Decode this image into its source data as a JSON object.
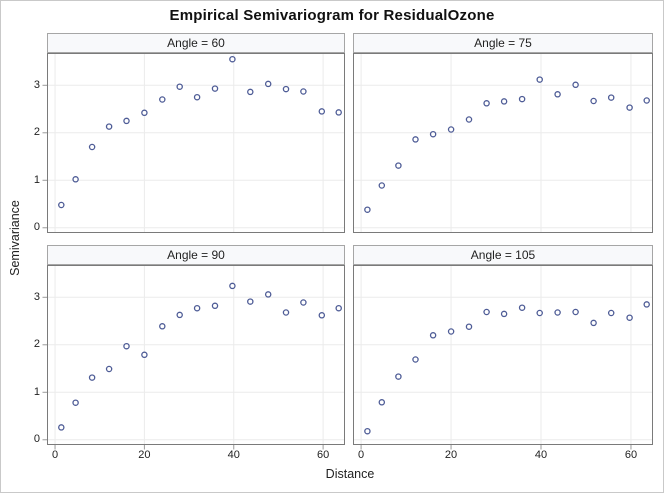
{
  "figure": {
    "title": "Empirical Semivariogram for ResidualOzone"
  },
  "chart_data": {
    "type": "scatter",
    "title": "Empirical Semivariogram for ResidualOzone",
    "xlabel": "Distance",
    "ylabel": "Semivariance",
    "marker": "open-circle",
    "marker_color": "#4e5c96",
    "grid": true,
    "grid_color": "#ebebeb",
    "xlim": [
      -1.8,
      64.9
    ],
    "ylim": [
      -0.11,
      3.68
    ],
    "x_ticks": [
      "0",
      "20",
      "40",
      "60"
    ],
    "x_tick_values": [
      0,
      20,
      40,
      60
    ],
    "y_ticks": [
      "0",
      "1",
      "2",
      "3"
    ],
    "y_tick_values": [
      0,
      1,
      2,
      3
    ],
    "x": [
      1.4,
      4.6,
      8.3,
      12.1,
      16.0,
      20.0,
      24.0,
      27.9,
      31.8,
      35.8,
      39.7,
      43.7,
      47.7,
      51.7,
      55.6,
      59.7,
      63.5
    ],
    "panels": [
      {
        "label": "Angle = 60",
        "values": [
          0.48,
          1.02,
          1.7,
          2.13,
          2.25,
          2.42,
          2.7,
          2.97,
          2.75,
          2.93,
          3.55,
          2.86,
          3.03,
          2.92,
          2.87,
          2.45,
          2.43
        ]
      },
      {
        "label": "Angle = 75",
        "values": [
          0.38,
          0.89,
          1.31,
          1.86,
          1.97,
          2.07,
          2.28,
          2.62,
          2.66,
          2.71,
          3.12,
          2.81,
          3.01,
          2.67,
          2.74,
          2.53,
          2.68
        ]
      },
      {
        "label": "Angle = 90",
        "values": [
          0.26,
          0.78,
          1.31,
          1.49,
          1.97,
          1.79,
          2.39,
          2.63,
          2.77,
          2.82,
          3.24,
          2.91,
          3.06,
          2.68,
          2.89,
          2.62,
          2.77
        ]
      },
      {
        "label": "Angle = 105",
        "values": [
          0.18,
          0.79,
          1.33,
          1.69,
          2.2,
          2.28,
          2.38,
          2.69,
          2.65,
          2.78,
          2.67,
          2.68,
          2.69,
          2.46,
          2.67,
          2.57,
          2.85
        ]
      }
    ],
    "colors": {
      "panel_border": "#7a7a7a",
      "header_bg": "#f8f9fb",
      "header_border": "#a6a6a6",
      "tick": "#9b9b9b",
      "outer_frame": "#c9c9c9"
    }
  }
}
